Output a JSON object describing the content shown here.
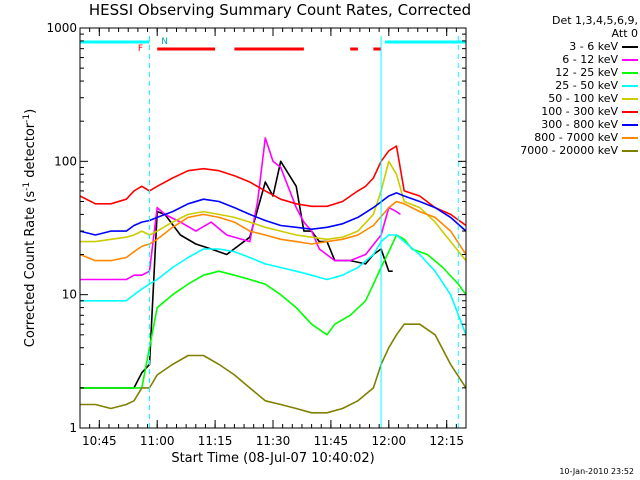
{
  "chart_data": {
    "type": "line",
    "title": "HESSI Observing Summary Count Rates, Corrected",
    "xlabel": "Start Time (08-Jul-07 10:40:02)",
    "ylabel": "Corrected Count Rate (s^-1 detector^-1)",
    "ylabel_parts": [
      "Corrected Count Rate (s",
      "-1",
      " detector",
      "-1",
      ")"
    ],
    "xlim_minutes": [
      0,
      100
    ],
    "x_tick_labels": [
      "10:45",
      "11:00",
      "11:15",
      "11:30",
      "11:45",
      "12:00",
      "12:15"
    ],
    "x_tick_minutes": [
      5,
      20,
      35,
      50,
      65,
      80,
      95
    ],
    "ylim": [
      1,
      1000
    ],
    "y_scale": "log",
    "y_tick_labels": [
      "1",
      "10",
      "100",
      "1000"
    ],
    "legend_header": [
      "Det 1,3,4,5,6,9,",
      "Att 0"
    ],
    "legend_position": "right-outside",
    "series": [
      {
        "name": "3 - 6 keV",
        "color": "#000000",
        "x": [
          0,
          8,
          12,
          14,
          16,
          18,
          20,
          22,
          26,
          30,
          34,
          38,
          44,
          48,
          50,
          52,
          56,
          58,
          60,
          62,
          64,
          66,
          70,
          74,
          76,
          78,
          80,
          81
        ],
        "y": [
          2,
          2,
          2,
          2,
          2.6,
          3,
          42,
          40,
          28,
          24,
          22,
          20,
          27,
          70,
          55,
          100,
          65,
          30,
          30,
          25,
          25,
          18,
          18,
          17,
          20,
          22,
          15,
          15
        ]
      },
      {
        "name": "6 - 12 keV",
        "color": "#ff00ff",
        "x": [
          0,
          8,
          12,
          14,
          16,
          18,
          20,
          22,
          26,
          30,
          34,
          38,
          44,
          46,
          48,
          50,
          52,
          56,
          58,
          60,
          62,
          66,
          70,
          74,
          78,
          80,
          82,
          83
        ],
        "y": [
          13,
          13,
          13,
          14,
          14,
          15,
          45,
          40,
          35,
          30,
          35,
          28,
          25,
          50,
          150,
          100,
          90,
          45,
          35,
          30,
          22,
          18,
          18,
          20,
          28,
          45,
          42,
          40
        ]
      },
      {
        "name": "12 - 25 keV",
        "color": "#00ff00",
        "x": [
          0,
          10,
          16,
          18,
          20,
          24,
          28,
          32,
          36,
          40,
          44,
          48,
          52,
          56,
          60,
          64,
          66,
          70,
          74,
          76,
          78,
          80,
          82,
          84,
          86,
          90,
          94,
          98,
          100
        ],
        "y": [
          2,
          2,
          2,
          4,
          8,
          10,
          12,
          14,
          15,
          14,
          13,
          12,
          10,
          8,
          6,
          5,
          6,
          7,
          9,
          12,
          16,
          21,
          28,
          26,
          22,
          20,
          16,
          12,
          10
        ]
      },
      {
        "name": "25 - 50 keV",
        "color": "#00ffff",
        "x": [
          0,
          4,
          8,
          12,
          14,
          16,
          18,
          20,
          24,
          28,
          32,
          36,
          40,
          44,
          48,
          52,
          56,
          60,
          64,
          68,
          72,
          76,
          78,
          80,
          82,
          84,
          88,
          92,
          96,
          100
        ],
        "y": [
          9,
          9,
          9,
          9,
          10,
          11,
          12,
          13,
          16,
          19,
          22,
          22,
          21,
          19,
          17,
          16,
          15,
          14,
          13,
          14,
          16,
          20,
          25,
          28,
          28,
          25,
          20,
          15,
          10,
          5
        ]
      },
      {
        "name": "50 - 100 keV",
        "color": "#cccc00",
        "x": [
          0,
          4,
          8,
          12,
          14,
          16,
          18,
          20,
          24,
          28,
          32,
          36,
          40,
          44,
          48,
          52,
          56,
          60,
          64,
          68,
          72,
          76,
          78,
          80,
          82,
          84,
          88,
          92,
          96,
          100
        ],
        "y": [
          25,
          25,
          26,
          27,
          28,
          30,
          28,
          30,
          35,
          40,
          42,
          40,
          38,
          35,
          32,
          30,
          28,
          27,
          26,
          27,
          30,
          40,
          60,
          100,
          80,
          50,
          45,
          35,
          25,
          18
        ]
      },
      {
        "name": "100 - 300 keV",
        "color": "#ff0000",
        "x": [
          0,
          4,
          8,
          12,
          14,
          16,
          18,
          20,
          24,
          28,
          32,
          36,
          40,
          44,
          48,
          52,
          56,
          60,
          64,
          68,
          72,
          74,
          76,
          78,
          80,
          82,
          84,
          88,
          92,
          96,
          100
        ],
        "y": [
          55,
          48,
          48,
          52,
          60,
          65,
          60,
          65,
          75,
          85,
          88,
          85,
          78,
          70,
          60,
          52,
          48,
          46,
          46,
          50,
          60,
          65,
          75,
          100,
          120,
          130,
          60,
          55,
          45,
          40,
          33
        ]
      },
      {
        "name": "300 - 800 keV",
        "color": "#0000ff",
        "x": [
          0,
          4,
          8,
          12,
          14,
          16,
          18,
          20,
          24,
          28,
          32,
          36,
          40,
          44,
          48,
          52,
          56,
          60,
          64,
          68,
          72,
          76,
          80,
          82,
          84,
          88,
          92,
          96,
          100
        ],
        "y": [
          30,
          28,
          30,
          30,
          33,
          35,
          36,
          38,
          42,
          48,
          52,
          50,
          45,
          40,
          36,
          33,
          32,
          31,
          32,
          34,
          38,
          45,
          55,
          58,
          55,
          50,
          45,
          38,
          30
        ]
      },
      {
        "name": "800 - 7000 keV",
        "color": "#ff8800",
        "x": [
          0,
          4,
          8,
          12,
          14,
          16,
          18,
          20,
          24,
          28,
          32,
          36,
          40,
          44,
          48,
          52,
          56,
          60,
          64,
          68,
          72,
          76,
          80,
          82,
          84,
          88,
          92,
          96,
          100
        ],
        "y": [
          20,
          18,
          18,
          19,
          21,
          23,
          24,
          26,
          32,
          38,
          40,
          38,
          35,
          30,
          28,
          26,
          25,
          24,
          25,
          26,
          28,
          33,
          45,
          50,
          48,
          42,
          38,
          30,
          20
        ]
      },
      {
        "name": "7000 - 20000 keV",
        "color": "#808000",
        "x": [
          0,
          4,
          8,
          12,
          14,
          16,
          18,
          20,
          24,
          28,
          32,
          36,
          40,
          44,
          48,
          52,
          56,
          60,
          64,
          68,
          72,
          76,
          78,
          80,
          82,
          84,
          88,
          92,
          96,
          100
        ],
        "y": [
          1.5,
          1.5,
          1.4,
          1.5,
          1.6,
          2,
          2,
          2.5,
          3,
          3.5,
          3.5,
          3,
          2.5,
          2,
          1.6,
          1.5,
          1.4,
          1.3,
          1.3,
          1.4,
          1.6,
          2,
          3,
          4,
          5,
          6,
          6,
          5,
          3,
          2
        ]
      }
    ],
    "state_bars": [
      {
        "label": "",
        "color": "#00ffff",
        "segments": [
          [
            0,
            18
          ],
          [
            79,
            100
          ]
        ]
      },
      {
        "label": "F",
        "color": "#ff0000",
        "segments": [
          [
            20,
            35
          ],
          [
            40,
            58
          ],
          [
            70,
            72
          ],
          [
            76,
            78
          ]
        ]
      }
    ],
    "state_bar_marks": [
      "F",
      "N"
    ],
    "vertical_markers_minutes": [
      18,
      78,
      98
    ],
    "vertical_marker_color": "#00ffff"
  },
  "footer": {
    "timestamp": "10-Jan-2010 23:52"
  }
}
